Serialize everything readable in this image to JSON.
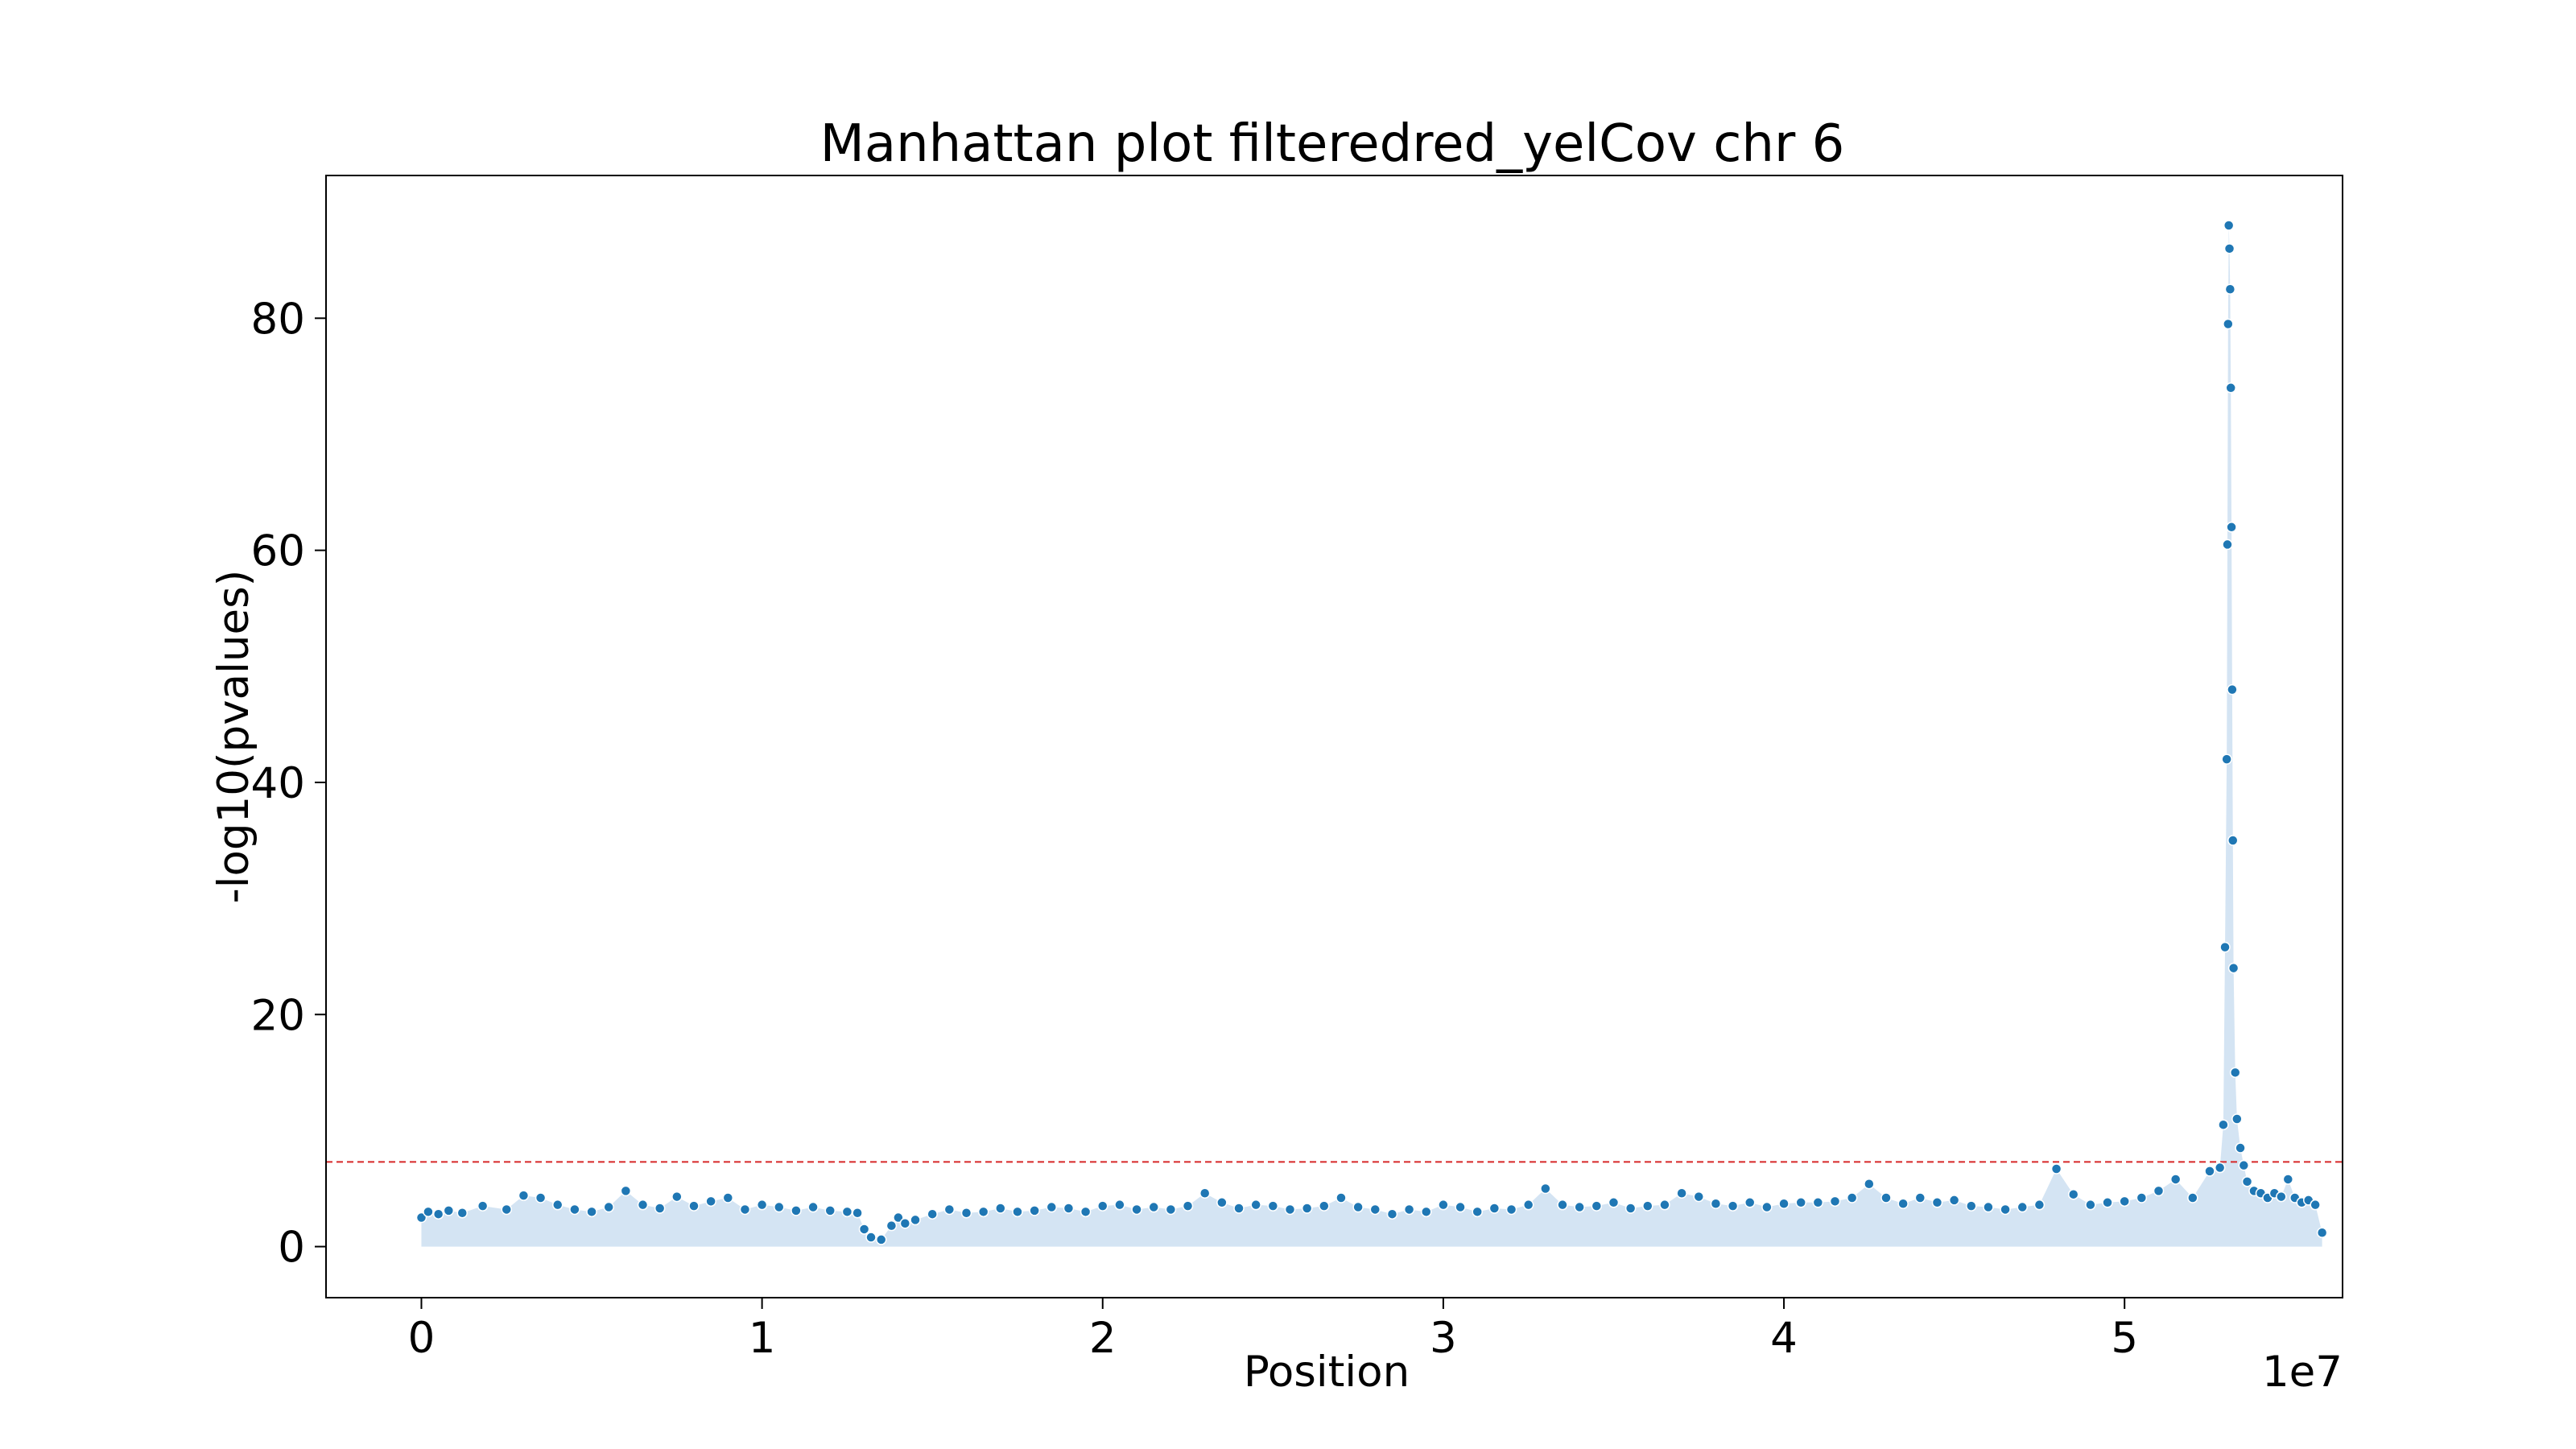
{
  "chart_data": {
    "type": "scatter",
    "title": "Manhattan plot filteredred_yelCov chr 6",
    "xlabel": "Position",
    "ylabel": "-log10(pvalues)",
    "x_offset_label": "1e7",
    "xlim": [
      -0.28,
      5.64
    ],
    "ylim": [
      -4.4,
      92.3
    ],
    "x_ticks": [
      0,
      1,
      2,
      3,
      4,
      5
    ],
    "x_tick_labels": [
      "0",
      "1",
      "2",
      "3",
      "4",
      "5"
    ],
    "y_ticks": [
      0,
      20,
      40,
      60,
      80
    ],
    "y_tick_labels": [
      "0",
      "20",
      "40",
      "60",
      "80"
    ],
    "grid": false,
    "threshold_line": {
      "y": 7.3,
      "style": "dashed",
      "color": "#d62728"
    },
    "colors": {
      "points": "#1f77b4",
      "fill": "#c6dbef"
    },
    "series": [
      {
        "x": [
          0.0,
          0.02,
          0.05,
          0.08,
          0.12,
          0.18,
          0.25,
          0.3,
          0.35,
          0.4,
          0.45,
          0.5,
          0.55,
          0.6,
          0.65,
          0.7,
          0.75,
          0.8,
          0.85,
          0.9,
          0.95,
          1.0,
          1.05,
          1.1,
          1.15,
          1.2,
          1.25,
          1.28,
          1.3,
          1.32,
          1.35,
          1.38,
          1.4,
          1.42,
          1.45,
          1.5,
          1.55,
          1.6,
          1.65,
          1.7,
          1.75,
          1.8,
          1.85,
          1.9,
          1.95,
          2.0,
          2.05,
          2.1,
          2.15,
          2.2,
          2.25,
          2.3,
          2.35,
          2.4,
          2.45,
          2.5,
          2.55,
          2.6,
          2.65,
          2.7,
          2.75,
          2.8,
          2.85,
          2.9,
          2.95,
          3.0,
          3.05,
          3.1,
          3.15,
          3.2,
          3.25,
          3.3,
          3.35,
          3.4,
          3.45,
          3.5,
          3.55,
          3.6,
          3.65,
          3.7,
          3.75,
          3.8,
          3.85,
          3.9,
          3.95,
          4.0,
          4.05,
          4.1,
          4.15,
          4.2,
          4.25,
          4.3,
          4.35,
          4.4,
          4.45,
          4.5,
          4.55,
          4.6,
          4.65,
          4.7,
          4.75,
          4.8,
          4.85,
          4.9,
          4.95,
          5.0,
          5.05,
          5.1,
          5.15,
          5.2,
          5.25,
          5.28,
          5.29,
          5.295,
          5.3,
          5.302,
          5.304,
          5.306,
          5.308,
          5.31,
          5.312,
          5.314,
          5.316,
          5.318,
          5.32,
          5.325,
          5.33,
          5.34,
          5.35,
          5.36,
          5.38,
          5.4,
          5.42,
          5.44,
          5.46,
          5.48,
          5.5,
          5.52,
          5.54,
          5.56,
          5.58
        ],
        "y": [
          2.5,
          3.0,
          2.8,
          3.1,
          2.9,
          3.5,
          3.2,
          4.4,
          4.2,
          3.6,
          3.2,
          3.0,
          3.4,
          4.8,
          3.6,
          3.3,
          4.3,
          3.5,
          3.9,
          4.2,
          3.2,
          3.6,
          3.4,
          3.1,
          3.4,
          3.1,
          3.0,
          2.9,
          1.5,
          0.8,
          0.6,
          1.8,
          2.5,
          2.0,
          2.3,
          2.8,
          3.2,
          2.9,
          3.0,
          3.3,
          3.0,
          3.1,
          3.4,
          3.3,
          3.0,
          3.5,
          3.6,
          3.2,
          3.4,
          3.2,
          3.5,
          4.6,
          3.8,
          3.3,
          3.6,
          3.5,
          3.2,
          3.3,
          3.5,
          4.2,
          3.4,
          3.2,
          2.8,
          3.2,
          3.0,
          3.6,
          3.4,
          3.0,
          3.3,
          3.2,
          3.6,
          5.0,
          3.6,
          3.4,
          3.5,
          3.8,
          3.3,
          3.5,
          3.6,
          4.6,
          4.3,
          3.7,
          3.5,
          3.8,
          3.4,
          3.7,
          3.8,
          3.8,
          3.9,
          4.2,
          5.4,
          4.2,
          3.7,
          4.2,
          3.8,
          4.0,
          3.5,
          3.4,
          3.2,
          3.4,
          3.6,
          6.7,
          4.5,
          3.6,
          3.8,
          3.9,
          4.2,
          4.8,
          5.8,
          4.2,
          6.5,
          6.8,
          10.5,
          25.8,
          42.0,
          60.5,
          79.5,
          88.0,
          86.0,
          82.5,
          74.0,
          62.0,
          48.0,
          35.0,
          24.0,
          15.0,
          11.0,
          8.5,
          7.0,
          5.6,
          4.8,
          4.6,
          4.2,
          4.6,
          4.3,
          5.8,
          4.2,
          3.8,
          4.0,
          3.6,
          1.2
        ]
      }
    ]
  }
}
